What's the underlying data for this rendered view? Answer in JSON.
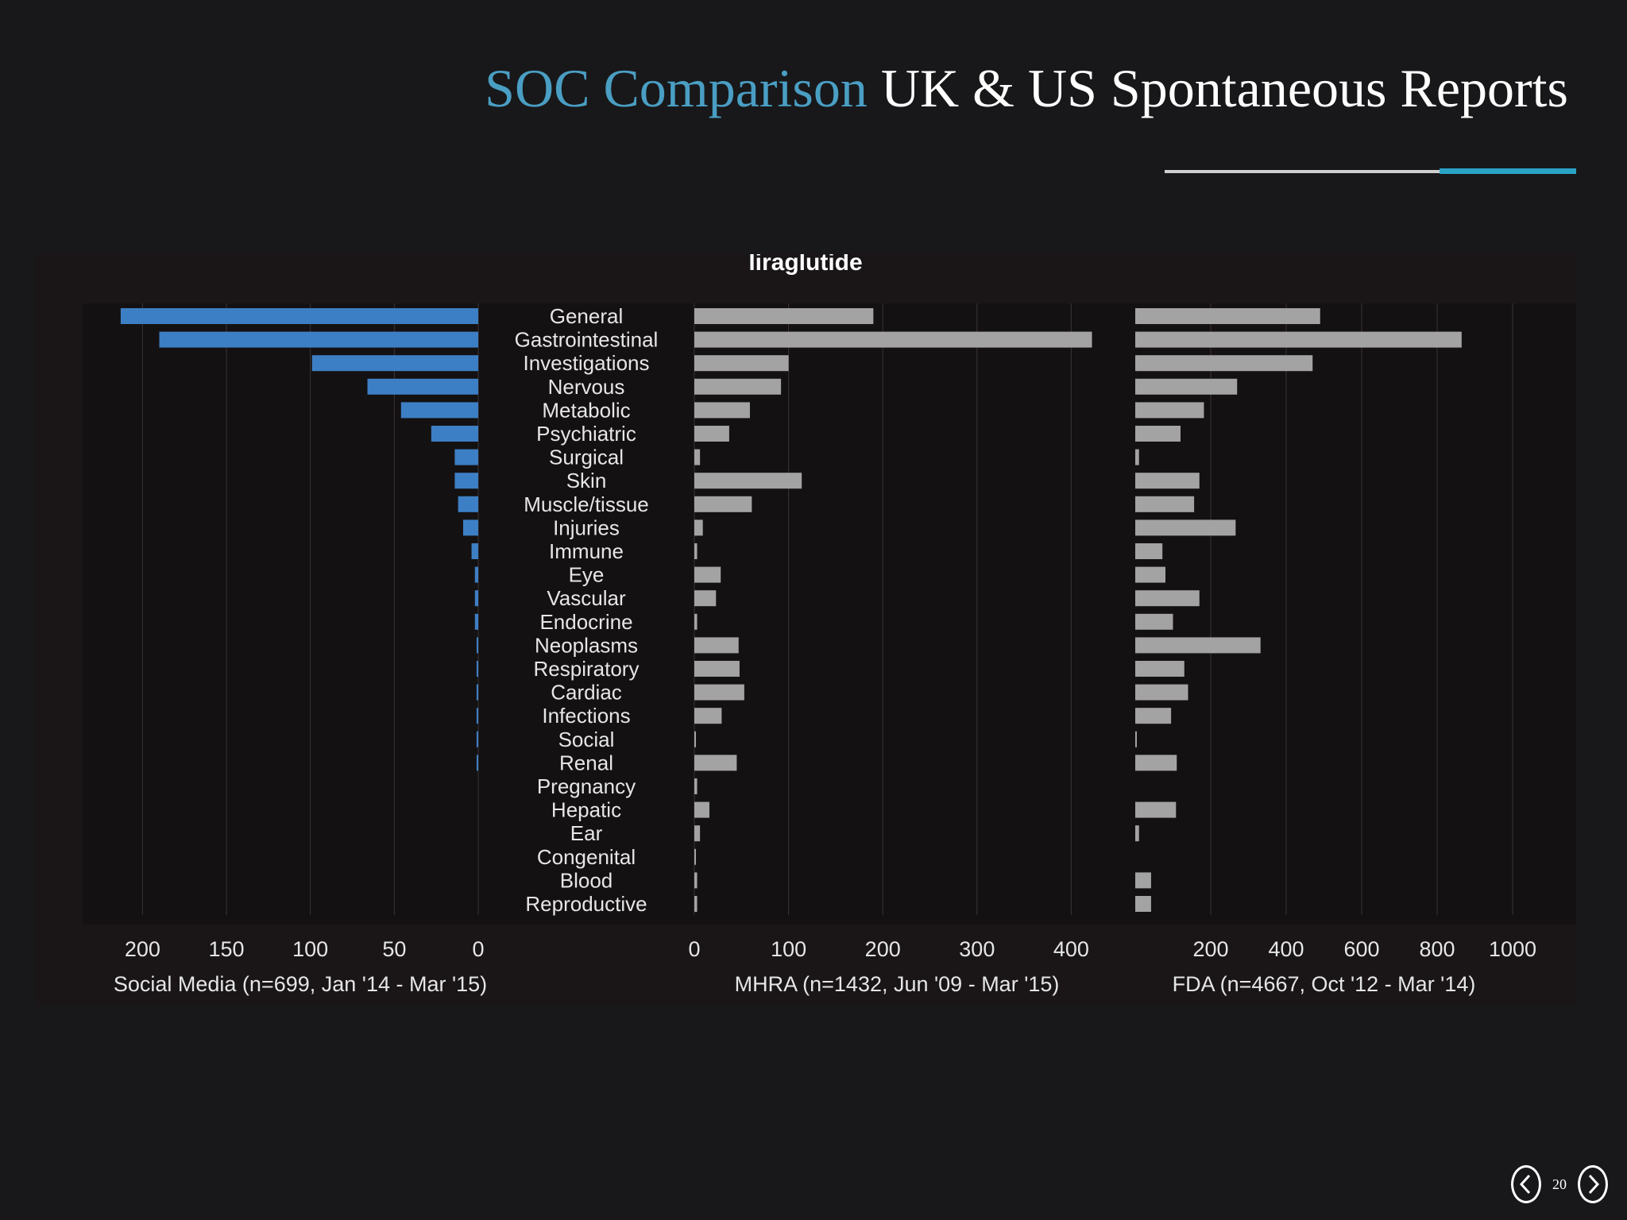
{
  "slide": {
    "title_accent": "SOC Comparison",
    "title_rest": " UK & US Spontaneous Reports",
    "page_number": "20",
    "colors": {
      "accent": "#4a9ec3",
      "rule_accent": "#2aa3c7",
      "social_bar": "#3d7fc4",
      "gray_bar": "#a3a3a3"
    },
    "icons": {
      "prev": "chevron-left-icon",
      "next": "chevron-right-icon"
    }
  },
  "chart_data": {
    "type": "bar",
    "orientation": "horizontal",
    "title": "liraglutide",
    "categories": [
      "General",
      "Gastrointestinal",
      "Investigations",
      "Nervous",
      "Metabolic",
      "Psychiatric",
      "Surgical",
      "Skin",
      "Muscle/tissue",
      "Injuries",
      "Immune",
      "Eye",
      "Vascular",
      "Endocrine",
      "Neoplasms",
      "Respiratory",
      "Cardiac",
      "Infections",
      "Social",
      "Renal",
      "Pregnancy",
      "Hepatic",
      "Ear",
      "Congenital",
      "Blood",
      "Reproductive"
    ],
    "grid": true,
    "panels": [
      {
        "name": "Social Media (n=699, Jan '14 - Mar '15)",
        "direction": "reversed",
        "color": "#3d7fc4",
        "xlim": [
          0,
          212
        ],
        "ticks": [
          200,
          150,
          100,
          50,
          0
        ],
        "values": [
          213,
          190,
          99,
          66,
          46,
          28,
          14,
          14,
          12,
          9,
          4,
          2,
          2,
          2,
          1,
          1,
          1,
          1,
          1,
          1,
          0,
          0,
          0,
          0,
          0,
          0
        ]
      },
      {
        "name": "MHRA (n=1432, Jun '09 - Mar '15)",
        "direction": "normal",
        "color": "#a3a3a3",
        "xlim": [
          0,
          430
        ],
        "ticks": [
          0,
          100,
          200,
          300,
          400
        ],
        "values": [
          190,
          422,
          100,
          92,
          59,
          37,
          6,
          114,
          61,
          9,
          3,
          28,
          23,
          3,
          47,
          48,
          53,
          29,
          1,
          45,
          3,
          16,
          6,
          1,
          3,
          3
        ]
      },
      {
        "name": "FDA (n=4667, Oct '12 - Mar '14)",
        "direction": "normal",
        "color": "#a3a3a3",
        "xlim": [
          0,
          1000
        ],
        "ticks": [
          200,
          400,
          600,
          800,
          1000
        ],
        "values": [
          490,
          865,
          470,
          270,
          182,
          120,
          10,
          170,
          156,
          266,
          72,
          80,
          170,
          100,
          332,
          130,
          140,
          95,
          4,
          110,
          0,
          108,
          10,
          0,
          42,
          42
        ]
      }
    ]
  }
}
